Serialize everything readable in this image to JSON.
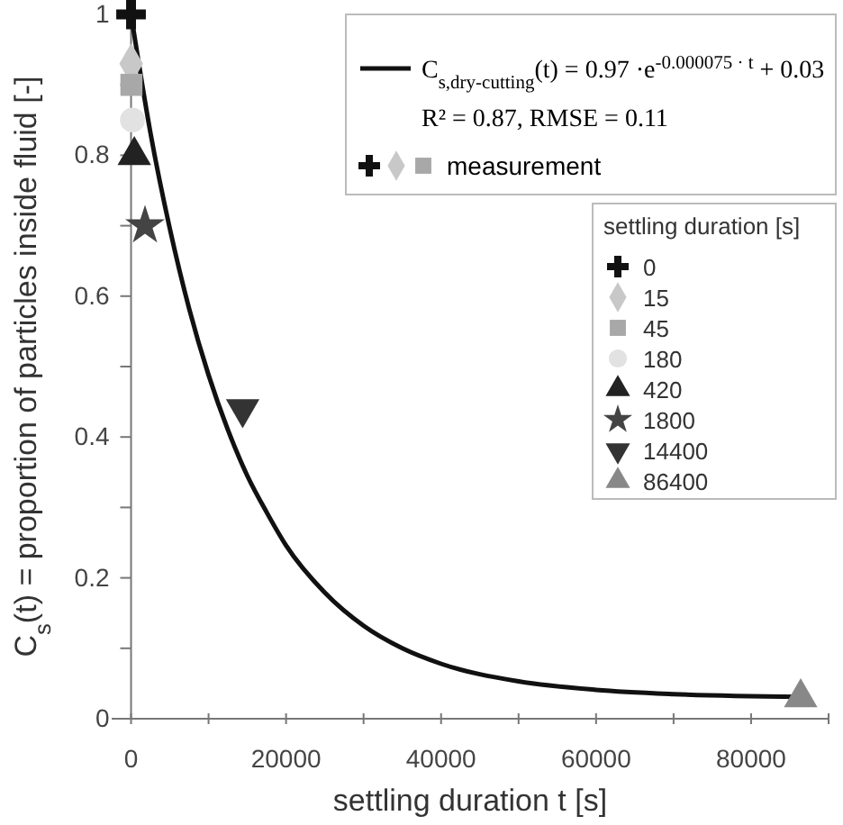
{
  "chart_data": {
    "type": "scatter",
    "xlabel": "settling duration t [s]",
    "ylabel": "C$_{s}$(t) = proportion of particles inside fluid [-]",
    "legend_title": "settling duration [s]",
    "xlim": [
      -2500,
      90000
    ],
    "ylim": [
      0,
      1
    ],
    "xticks": [
      0,
      {
        "value": 10000,
        "label": null
      },
      20000,
      {
        "value": 30000,
        "label": null
      },
      40000,
      {
        "value": 50000,
        "label": null
      },
      60000,
      {
        "value": 70000,
        "label": null
      },
      80000,
      {
        "value": 90000,
        "label": null
      }
    ],
    "yticks": [
      0,
      {
        "value": 0.1,
        "label": null
      },
      0.2,
      {
        "value": 0.3,
        "label": null
      },
      0.4,
      {
        "value": 0.5,
        "label": null
      },
      0.6,
      {
        "value": 0.7,
        "label": null
      },
      0.8,
      {
        "value": 0.9,
        "label": null
      },
      1
    ],
    "grid": false,
    "legend": "top right",
    "annotations": [
      "R² = 0.87, RMSE = 0.11",
      "measurement"
    ],
    "series": [
      {
        "type": "line",
        "name": "C$_{s,dry-cutting}$(t) = 0.97 ·e$^{-0.000075 · t}$ + 0.03",
        "color": "#111111",
        "line_style": "solid",
        "x": [
          0,
          2500,
          5000,
          7500,
          10000,
          12500,
          15000,
          17500,
          20000,
          25000,
          30000,
          35000,
          40000,
          50000,
          60000,
          70000,
          86400
        ],
        "values": [
          1,
          0.832,
          0.696,
          0.582,
          0.488,
          0.41,
          0.345,
          0.293,
          0.246,
          0.179,
          0.132,
          0.1,
          0.078,
          0.053,
          0.041,
          0.035,
          0.031
        ]
      },
      {
        "name": "0",
        "color": "#111111",
        "marker": "cross",
        "x": [
          0
        ],
        "values": [
          1
        ]
      },
      {
        "name": "15",
        "color": "#c8c8c8",
        "marker": "diamond",
        "x": [
          15
        ],
        "values": [
          0.93
        ]
      },
      {
        "name": "45",
        "color": "#a8a8a8",
        "marker": "square",
        "x": [
          45
        ],
        "values": [
          0.9
        ]
      },
      {
        "name": "180",
        "color": "#e2e2e2",
        "marker": "circle",
        "x": [
          180
        ],
        "values": [
          0.85
        ]
      },
      {
        "name": "420",
        "color": "#222222",
        "marker": "triangle",
        "x": [
          420
        ],
        "values": [
          0.8
        ]
      },
      {
        "name": "1800",
        "color": "#444444",
        "marker": "star",
        "x": [
          1800
        ],
        "values": [
          0.7
        ]
      },
      {
        "name": "14400",
        "color": "#333333",
        "marker": "triangle-down",
        "x": [
          14400
        ],
        "values": [
          0.44
        ]
      },
      {
        "name": "86400",
        "color": "#888888",
        "marker": "triangle",
        "x": [
          86400
        ],
        "values": [
          0.03
        ]
      }
    ]
  }
}
